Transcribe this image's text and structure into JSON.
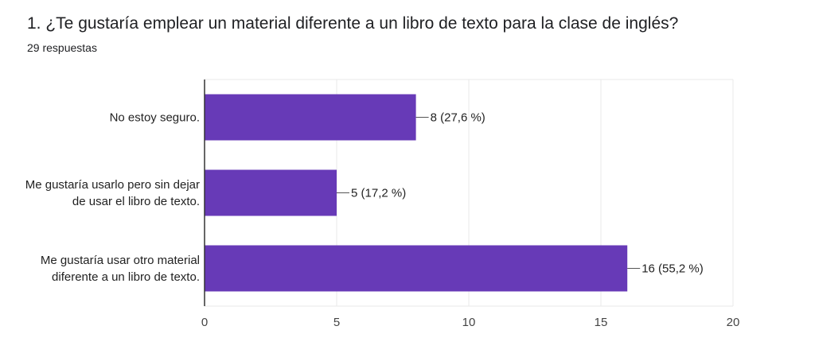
{
  "question": {
    "title": "1. ¿Te gustaría emplear un material diferente a un libro de texto para la clase de inglés?",
    "response_count": "29 respuestas"
  },
  "colors": {
    "bar": "#673ab7",
    "grid": "#e8e8e8",
    "axis": "#333333"
  },
  "chart_data": {
    "type": "bar",
    "orientation": "horizontal",
    "categories": [
      [
        "No estoy seguro."
      ],
      [
        "Me gustaría usarlo pero sin dejar",
        "de usar el libro de texto."
      ],
      [
        "Me gustaría usar otro material",
        "diferente a un libro de texto."
      ]
    ],
    "values": [
      8,
      5,
      16
    ],
    "value_labels": [
      "8 (27,6 %)",
      "5 (17,2 %)",
      "16 (55,2 %)"
    ],
    "xlim": [
      0,
      20
    ],
    "xticks": [
      0,
      5,
      10,
      15,
      20
    ],
    "grid": true
  }
}
